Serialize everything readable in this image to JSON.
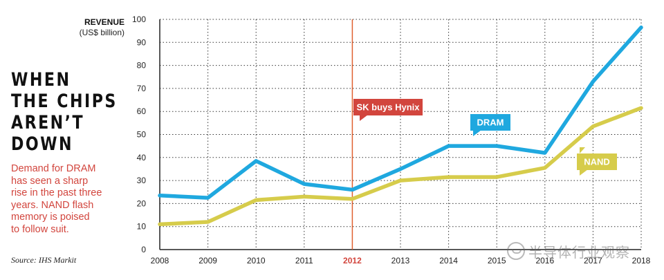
{
  "page": {
    "headline_lines": [
      "WHEN",
      "THE CHIPS",
      "AREN’T",
      "DOWN"
    ],
    "deck_lines": [
      "Demand for DRAM",
      "has seen a sharp",
      "rise in the past three",
      "years. NAND flash",
      "memory is poised",
      "to follow suit."
    ],
    "source": "Source: IHS Markit",
    "watermark": "半导体行业观察"
  },
  "chart_data": {
    "type": "line",
    "ylabel_line1": "REVENUE",
    "ylabel_line2": "(US$ billion)",
    "ylim": [
      0,
      100
    ],
    "yticks": [
      0,
      10,
      20,
      30,
      40,
      50,
      60,
      70,
      80,
      90,
      100
    ],
    "categories": [
      "2008",
      "2009",
      "2010",
      "2011",
      "2012",
      "2013",
      "2014",
      "2015",
      "2016",
      "2017",
      "2018"
    ],
    "highlight_category": "2012",
    "grid": "dotted",
    "series": [
      {
        "name": "DRAM",
        "color": "#1fa8df",
        "values": [
          23.5,
          22.5,
          38.5,
          28.5,
          26,
          35,
          45,
          45,
          42,
          73,
          96.5
        ]
      },
      {
        "name": "NAND",
        "color": "#d6cc4b",
        "values": [
          11,
          12,
          21.5,
          23,
          22,
          30,
          31.5,
          31.5,
          35.5,
          53.5,
          61.5
        ]
      }
    ],
    "annotation": {
      "text": "SK buys Hynix",
      "x": "2012",
      "color": "#d2453d",
      "line_color": "#e0602f"
    }
  }
}
